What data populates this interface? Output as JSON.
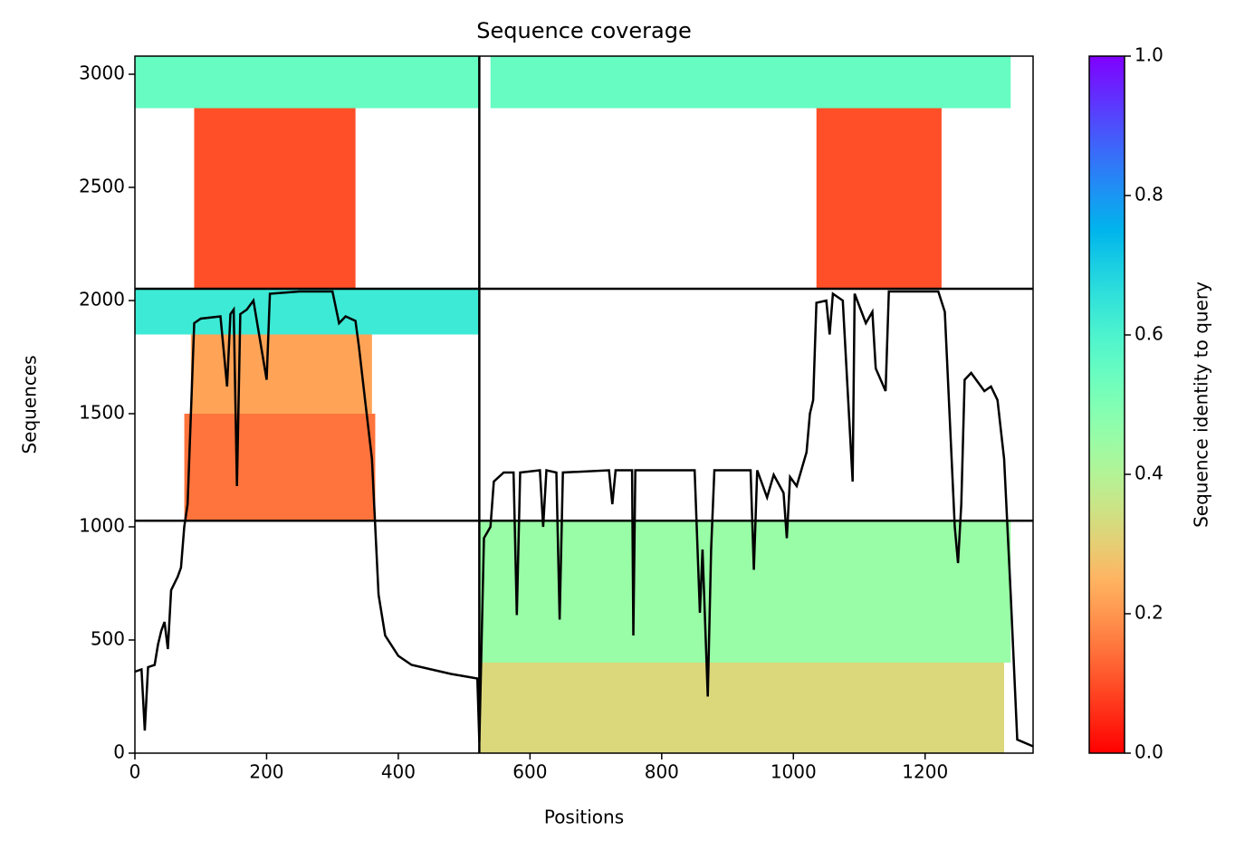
{
  "chart_data": {
    "type": "coverage",
    "title": "Sequence coverage",
    "x_label": "Positions",
    "y_label": "Sequences",
    "colorbar_label": "Sequence identity to query",
    "colormap": "rainbow_r",
    "clim": [
      0,
      1
    ],
    "cticks": [
      {
        "value": 0,
        "label": "0.0"
      },
      {
        "value": 0.2,
        "label": "0.2"
      },
      {
        "value": 0.4,
        "label": "0.4"
      },
      {
        "value": 0.6,
        "label": "0.6"
      },
      {
        "value": 0.8,
        "label": "0.8"
      },
      {
        "value": 1,
        "label": "1.0"
      }
    ],
    "xlim": [
      0,
      1364
    ],
    "ylim": [
      0,
      3080
    ],
    "xticks": [
      0,
      200,
      400,
      600,
      800,
      1000,
      1200
    ],
    "yticks": [
      0,
      500,
      1000,
      1500,
      2000,
      2500,
      3000
    ],
    "boundaries_x": [
      523
    ],
    "boundaries_y": [
      1027,
      2052
    ],
    "blocks": {
      "x0": [
        523,
        523,
        75,
        85,
        0,
        90,
        1035,
        0,
        540
      ],
      "x1": [
        1320,
        1330,
        365,
        360,
        523,
        335,
        1225,
        523,
        1330
      ],
      "y0": [
        0,
        400,
        1027,
        1500,
        1850,
        2052,
        2052,
        2850,
        2850
      ],
      "y1": [
        400,
        1027,
        1500,
        1850,
        2052,
        2850,
        2850,
        3080,
        3080
      ],
      "identity": [
        0.32,
        0.45,
        0.15,
        0.22,
        0.63,
        0.1,
        0.1,
        0.55,
        0.55
      ]
    },
    "line_color": "#000000",
    "coverage": {
      "x": [
        0,
        10,
        15,
        20,
        30,
        35,
        40,
        45,
        50,
        55,
        65,
        70,
        75,
        80,
        90,
        100,
        130,
        140,
        145,
        150,
        155,
        160,
        170,
        180,
        200,
        205,
        250,
        300,
        310,
        320,
        335,
        340,
        350,
        360,
        370,
        380,
        400,
        420,
        450,
        480,
        520,
        523,
        530,
        540,
        545,
        560,
        575,
        580,
        585,
        615,
        620,
        625,
        640,
        645,
        650,
        720,
        725,
        730,
        755,
        757,
        760,
        850,
        858,
        862,
        870,
        875,
        880,
        935,
        940,
        945,
        960,
        970,
        985,
        990,
        995,
        1005,
        1020,
        1025,
        1030,
        1035,
        1050,
        1055,
        1060,
        1075,
        1090,
        1093,
        1110,
        1120,
        1125,
        1140,
        1145,
        1220,
        1230,
        1245,
        1250,
        1255,
        1260,
        1270,
        1280,
        1290,
        1300,
        1310,
        1320,
        1330,
        1340,
        1364
      ],
      "values": [
        360,
        370,
        100,
        380,
        390,
        480,
        540,
        580,
        460,
        720,
        780,
        820,
        1000,
        1100,
        1900,
        1920,
        1930,
        1620,
        1940,
        1960,
        1180,
        1940,
        1960,
        2000,
        1650,
        2030,
        2040,
        2040,
        1900,
        1930,
        1910,
        1800,
        1550,
        1300,
        700,
        520,
        430,
        390,
        370,
        350,
        330,
        50,
        950,
        1000,
        1200,
        1240,
        1240,
        610,
        1240,
        1250,
        1000,
        1250,
        1240,
        590,
        1240,
        1250,
        1100,
        1250,
        1250,
        520,
        1250,
        1250,
        620,
        900,
        250,
        900,
        1250,
        1250,
        810,
        1250,
        1130,
        1230,
        1150,
        950,
        1220,
        1180,
        1330,
        1500,
        1560,
        1990,
        2000,
        1850,
        2030,
        2000,
        1200,
        2030,
        1900,
        1950,
        1700,
        1600,
        2040,
        2040,
        1950,
        1000,
        840,
        1100,
        1650,
        1680,
        1640,
        1600,
        1620,
        1560,
        1300,
        700,
        60,
        30
      ]
    }
  }
}
